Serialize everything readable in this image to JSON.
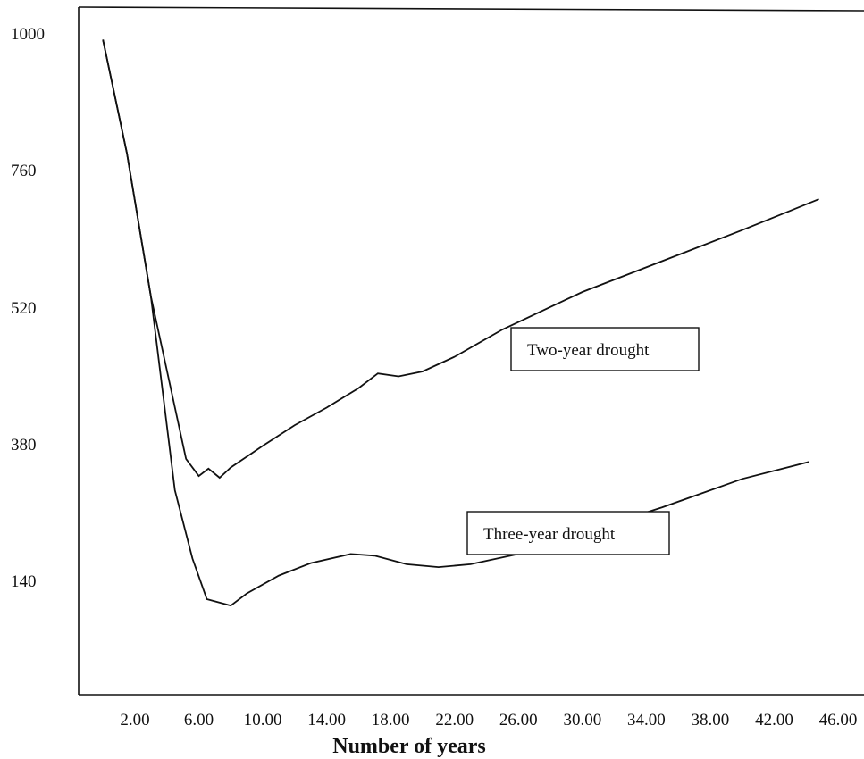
{
  "chart_data": {
    "type": "line",
    "title": "",
    "xlabel": "Number of years",
    "ylabel": "",
    "x_ticks": [
      "2.00",
      "6.00",
      "10.00",
      "14.00",
      "18.00",
      "22.00",
      "26.00",
      "30.00",
      "34.00",
      "38.00",
      "42.00",
      "46.00"
    ],
    "y_ticks": [
      "1000",
      "760",
      "520",
      "380",
      "140"
    ],
    "series": [
      {
        "name": "Two-year drought",
        "points": [
          [
            0,
            990
          ],
          [
            1.5,
            790
          ],
          [
            3.0,
            540
          ],
          [
            5.2,
            355
          ],
          [
            6.0,
            325
          ],
          [
            6.6,
            338
          ],
          [
            7.3,
            322
          ],
          [
            8.0,
            340
          ],
          [
            10.0,
            378
          ],
          [
            12.0,
            400
          ],
          [
            14.0,
            418
          ],
          [
            16.0,
            438
          ],
          [
            17.2,
            453
          ],
          [
            18.5,
            450
          ],
          [
            20.0,
            455
          ],
          [
            22.0,
            470
          ],
          [
            25.0,
            498
          ],
          [
            30.0,
            548
          ],
          [
            35.0,
            602
          ],
          [
            40.0,
            656
          ],
          [
            44.8,
            710
          ]
        ]
      },
      {
        "name": "Three-year drought",
        "points": [
          [
            0,
            990
          ],
          [
            1.5,
            790
          ],
          [
            3.0,
            540
          ],
          [
            4.5,
            300
          ],
          [
            5.6,
            180
          ],
          [
            6.5,
            118
          ],
          [
            8.0,
            110
          ],
          [
            9.0,
            125
          ],
          [
            11.0,
            150
          ],
          [
            13.0,
            172
          ],
          [
            15.5,
            188
          ],
          [
            17.0,
            185
          ],
          [
            19.0,
            170
          ],
          [
            21.0,
            165
          ],
          [
            23.0,
            170
          ],
          [
            26.0,
            188
          ],
          [
            30.0,
            225
          ],
          [
            35.0,
            270
          ],
          [
            40.0,
            320
          ],
          [
            44.2,
            350
          ]
        ]
      }
    ]
  }
}
